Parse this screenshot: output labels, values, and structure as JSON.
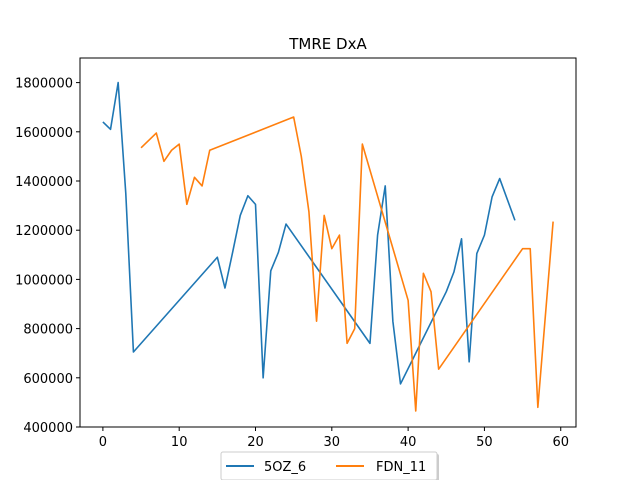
{
  "chart_data": {
    "type": "line",
    "title": "TMRE DxA",
    "xlabel": "",
    "ylabel": "",
    "xlim": [
      -3,
      62
    ],
    "ylim": [
      400000,
      1900000
    ],
    "xticks": [
      0,
      10,
      20,
      30,
      40,
      50,
      60
    ],
    "yticks": [
      400000,
      600000,
      800000,
      1000000,
      1200000,
      1400000,
      1600000,
      1800000
    ],
    "xtick_labels": [
      "0",
      "10",
      "20",
      "30",
      "40",
      "50",
      "60"
    ],
    "ytick_labels": [
      "400000",
      "600000",
      "800000",
      "1000000",
      "1200000",
      "1400000",
      "1600000",
      "1800000"
    ],
    "grid": false,
    "legend": {
      "placement": "bottom-center",
      "columns": 2
    },
    "series": [
      {
        "name": "5OZ_6",
        "color": "#1f77b4",
        "points": [
          [
            0,
            1640000
          ],
          [
            1,
            1610000
          ],
          [
            2,
            1800000
          ],
          [
            3,
            1350000
          ],
          [
            4,
            705000
          ],
          [
            15,
            1090000
          ],
          [
            16,
            965000
          ],
          [
            17,
            1110000
          ],
          [
            18,
            1260000
          ],
          [
            19,
            1340000
          ],
          [
            20,
            1305000
          ],
          [
            21,
            600000
          ],
          [
            22,
            1035000
          ],
          [
            23,
            1110000
          ],
          [
            24,
            1225000
          ],
          [
            35,
            740000
          ],
          [
            36,
            1180000
          ],
          [
            37,
            1380000
          ],
          [
            38,
            830000
          ],
          [
            39,
            575000
          ],
          [
            45,
            950000
          ],
          [
            46,
            1030000
          ],
          [
            47,
            1165000
          ],
          [
            48,
            665000
          ],
          [
            49,
            1105000
          ],
          [
            50,
            1180000
          ],
          [
            51,
            1335000
          ],
          [
            52,
            1410000
          ],
          [
            54,
            1240000
          ]
        ]
      },
      {
        "name": "FDN_11",
        "color": "#ff7f0e",
        "points": [
          [
            5,
            1535000
          ],
          [
            7,
            1595000
          ],
          [
            8,
            1480000
          ],
          [
            9,
            1525000
          ],
          [
            10,
            1550000
          ],
          [
            11,
            1305000
          ],
          [
            12,
            1415000
          ],
          [
            13,
            1380000
          ],
          [
            14,
            1525000
          ],
          [
            25,
            1660000
          ],
          [
            26,
            1500000
          ],
          [
            27,
            1275000
          ],
          [
            28,
            830000
          ],
          [
            29,
            1260000
          ],
          [
            30,
            1125000
          ],
          [
            31,
            1180000
          ],
          [
            32,
            740000
          ],
          [
            33,
            800000
          ],
          [
            34,
            1550000
          ],
          [
            40,
            915000
          ],
          [
            41,
            465000
          ],
          [
            42,
            1025000
          ],
          [
            43,
            950000
          ],
          [
            44,
            635000
          ],
          [
            55,
            1125000
          ],
          [
            56,
            1125000
          ],
          [
            57,
            480000
          ],
          [
            59,
            1235000
          ]
        ]
      }
    ]
  }
}
